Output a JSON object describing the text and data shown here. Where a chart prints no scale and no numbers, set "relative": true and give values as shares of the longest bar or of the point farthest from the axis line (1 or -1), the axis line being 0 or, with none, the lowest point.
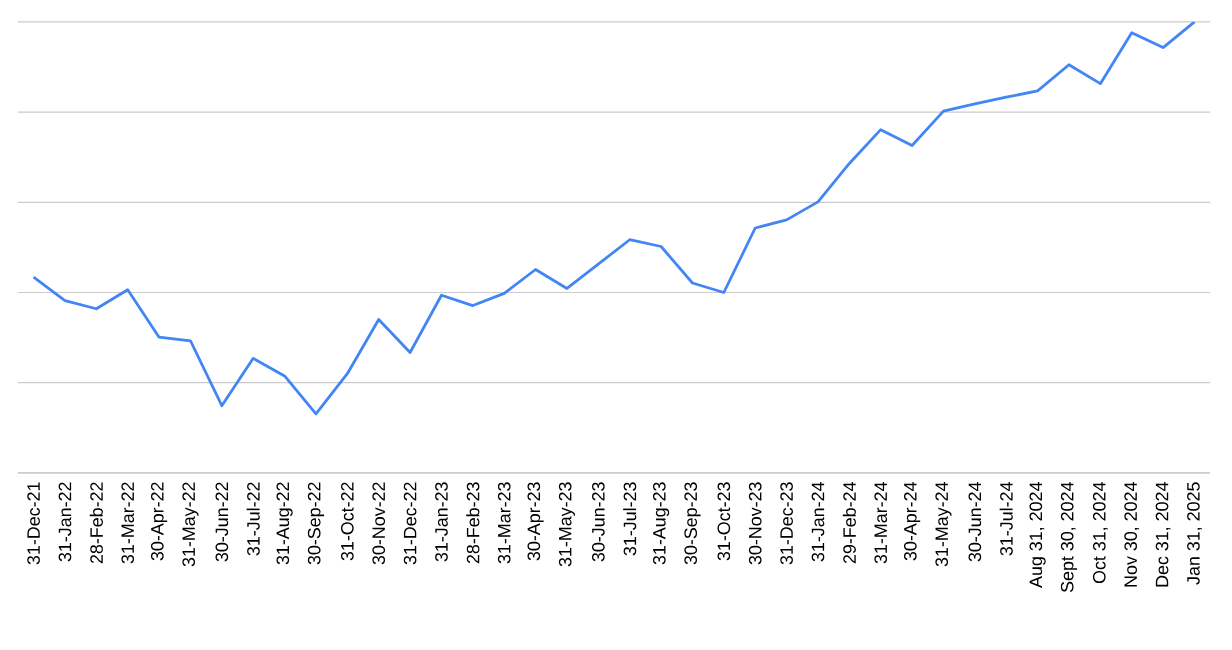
{
  "chart_data": {
    "type": "line",
    "relative": true,
    "grid": "y",
    "color": "#4285f4",
    "categories": [
      "31-Dec-21",
      "31-Jan-22",
      "28-Feb-22",
      "31-Mar-22",
      "30-Apr-22",
      "31-May-22",
      "30-Jun-22",
      "31-Jul-22",
      "31-Aug-22",
      "30-Sep-22",
      "31-Oct-22",
      "30-Nov-22",
      "31-Dec-22",
      "31-Jan-23",
      "28-Feb-23",
      "31-Mar-23",
      "30-Apr-23",
      "31-May-23",
      "30-Jun-23",
      "31-Jul-23",
      "31-Aug-23",
      "30-Sep-23",
      "31-Oct-23",
      "30-Nov-23",
      "31-Dec-23",
      "31-Jan-24",
      "29-Feb-24",
      "31-Mar-24",
      "30-Apr-24",
      "31-May-24",
      "30-Jun-24",
      "31-Jul-24",
      "Aug 31, 2024",
      "Sept 30, 2024",
      "Oct 31, 2024",
      "Nov 30, 2024",
      "Dec 31, 2024",
      "Jan 31, 2025"
    ],
    "values": [
      0.434,
      0.382,
      0.364,
      0.406,
      0.301,
      0.293,
      0.149,
      0.254,
      0.215,
      0.131,
      0.22,
      0.34,
      0.267,
      0.394,
      0.371,
      0.398,
      0.451,
      0.409,
      0.463,
      0.517,
      0.502,
      0.421,
      0.4,
      0.543,
      0.561,
      0.601,
      0.686,
      0.761,
      0.726,
      0.802,
      0.818,
      0.833,
      0.847,
      0.905,
      0.863,
      0.976,
      0.943,
      1
    ]
  }
}
